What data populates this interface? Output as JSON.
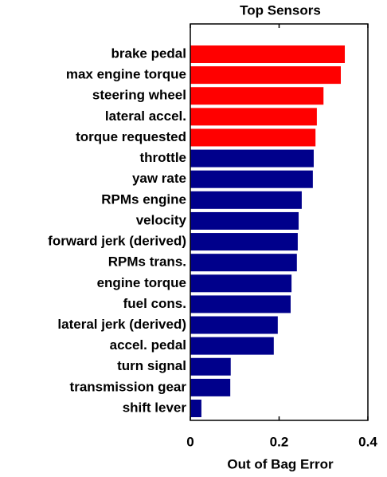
{
  "chart_data": {
    "type": "barh",
    "title": "Top Sensors",
    "x_label": "Out of Bag Error",
    "categories": [
      "brake pedal",
      "max engine torque",
      "steering wheel",
      "lateral accel.",
      "torque requested",
      "throttle",
      "yaw rate",
      "RPMs engine",
      "velocity",
      "forward jerk (derived)",
      "RPMs trans.",
      "engine torque",
      "fuel cons.",
      "lateral jerk (derived)",
      "accel. pedal",
      "turn signal",
      "transmission gear",
      "shift lever"
    ],
    "values": [
      0.348,
      0.339,
      0.3,
      0.285,
      0.282,
      0.278,
      0.276,
      0.251,
      0.244,
      0.242,
      0.24,
      0.228,
      0.226,
      0.197,
      0.188,
      0.091,
      0.09,
      0.025
    ],
    "colors": [
      "#ff0000",
      "#ff0000",
      "#ff0000",
      "#ff0000",
      "#ff0000",
      "#00008b",
      "#00008b",
      "#00008b",
      "#00008b",
      "#00008b",
      "#00008b",
      "#00008b",
      "#00008b",
      "#00008b",
      "#00008b",
      "#00008b",
      "#00008b",
      "#00008b"
    ],
    "xlim": [
      0,
      0.4
    ],
    "xticks": [
      0,
      0.2,
      0.4
    ]
  }
}
